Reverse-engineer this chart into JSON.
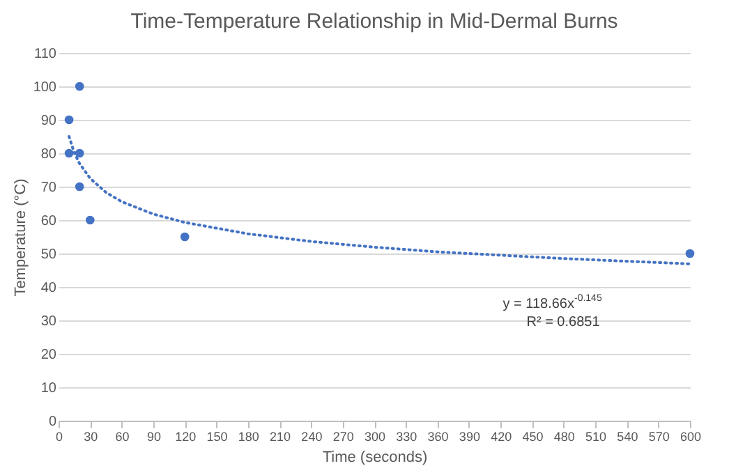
{
  "chart_data": {
    "type": "scatter",
    "title": "Time-Temperature Relationship in Mid-Dermal Burns",
    "xlabel": "Time (seconds)",
    "ylabel": "Temperature (°C)",
    "xlim": [
      0,
      600
    ],
    "xticks": [
      0,
      30,
      60,
      90,
      120,
      150,
      180,
      210,
      240,
      270,
      300,
      330,
      360,
      390,
      420,
      450,
      480,
      510,
      540,
      570,
      600
    ],
    "ylim": [
      0,
      110
    ],
    "yticks": [
      0,
      10,
      20,
      30,
      40,
      50,
      60,
      70,
      80,
      90,
      100,
      110
    ],
    "grid": "y",
    "legend": false,
    "annotations": [
      "y = 118.66x$^{-0.145}$",
      "R² = 0.6851"
    ],
    "series": [
      {
        "type": "scatter",
        "marker": "circle",
        "color": "#4472c4",
        "x": [
          10,
          10,
          20,
          20,
          20,
          30,
          120,
          600
        ],
        "values": [
          90,
          80,
          100,
          80,
          70,
          60,
          55,
          50
        ]
      },
      {
        "type": "line",
        "marker": "none",
        "line_style": "dotted",
        "color": "#4472c4",
        "x": [
          10,
          15,
          20,
          30,
          45,
          60,
          90,
          120,
          180,
          240,
          300,
          360,
          480,
          600
        ],
        "values": [
          85.0,
          80.1,
          76.9,
          72.5,
          68.3,
          65.5,
          61.8,
          59.3,
          55.9,
          53.6,
          51.9,
          50.5,
          48.5,
          46.9
        ]
      }
    ]
  }
}
